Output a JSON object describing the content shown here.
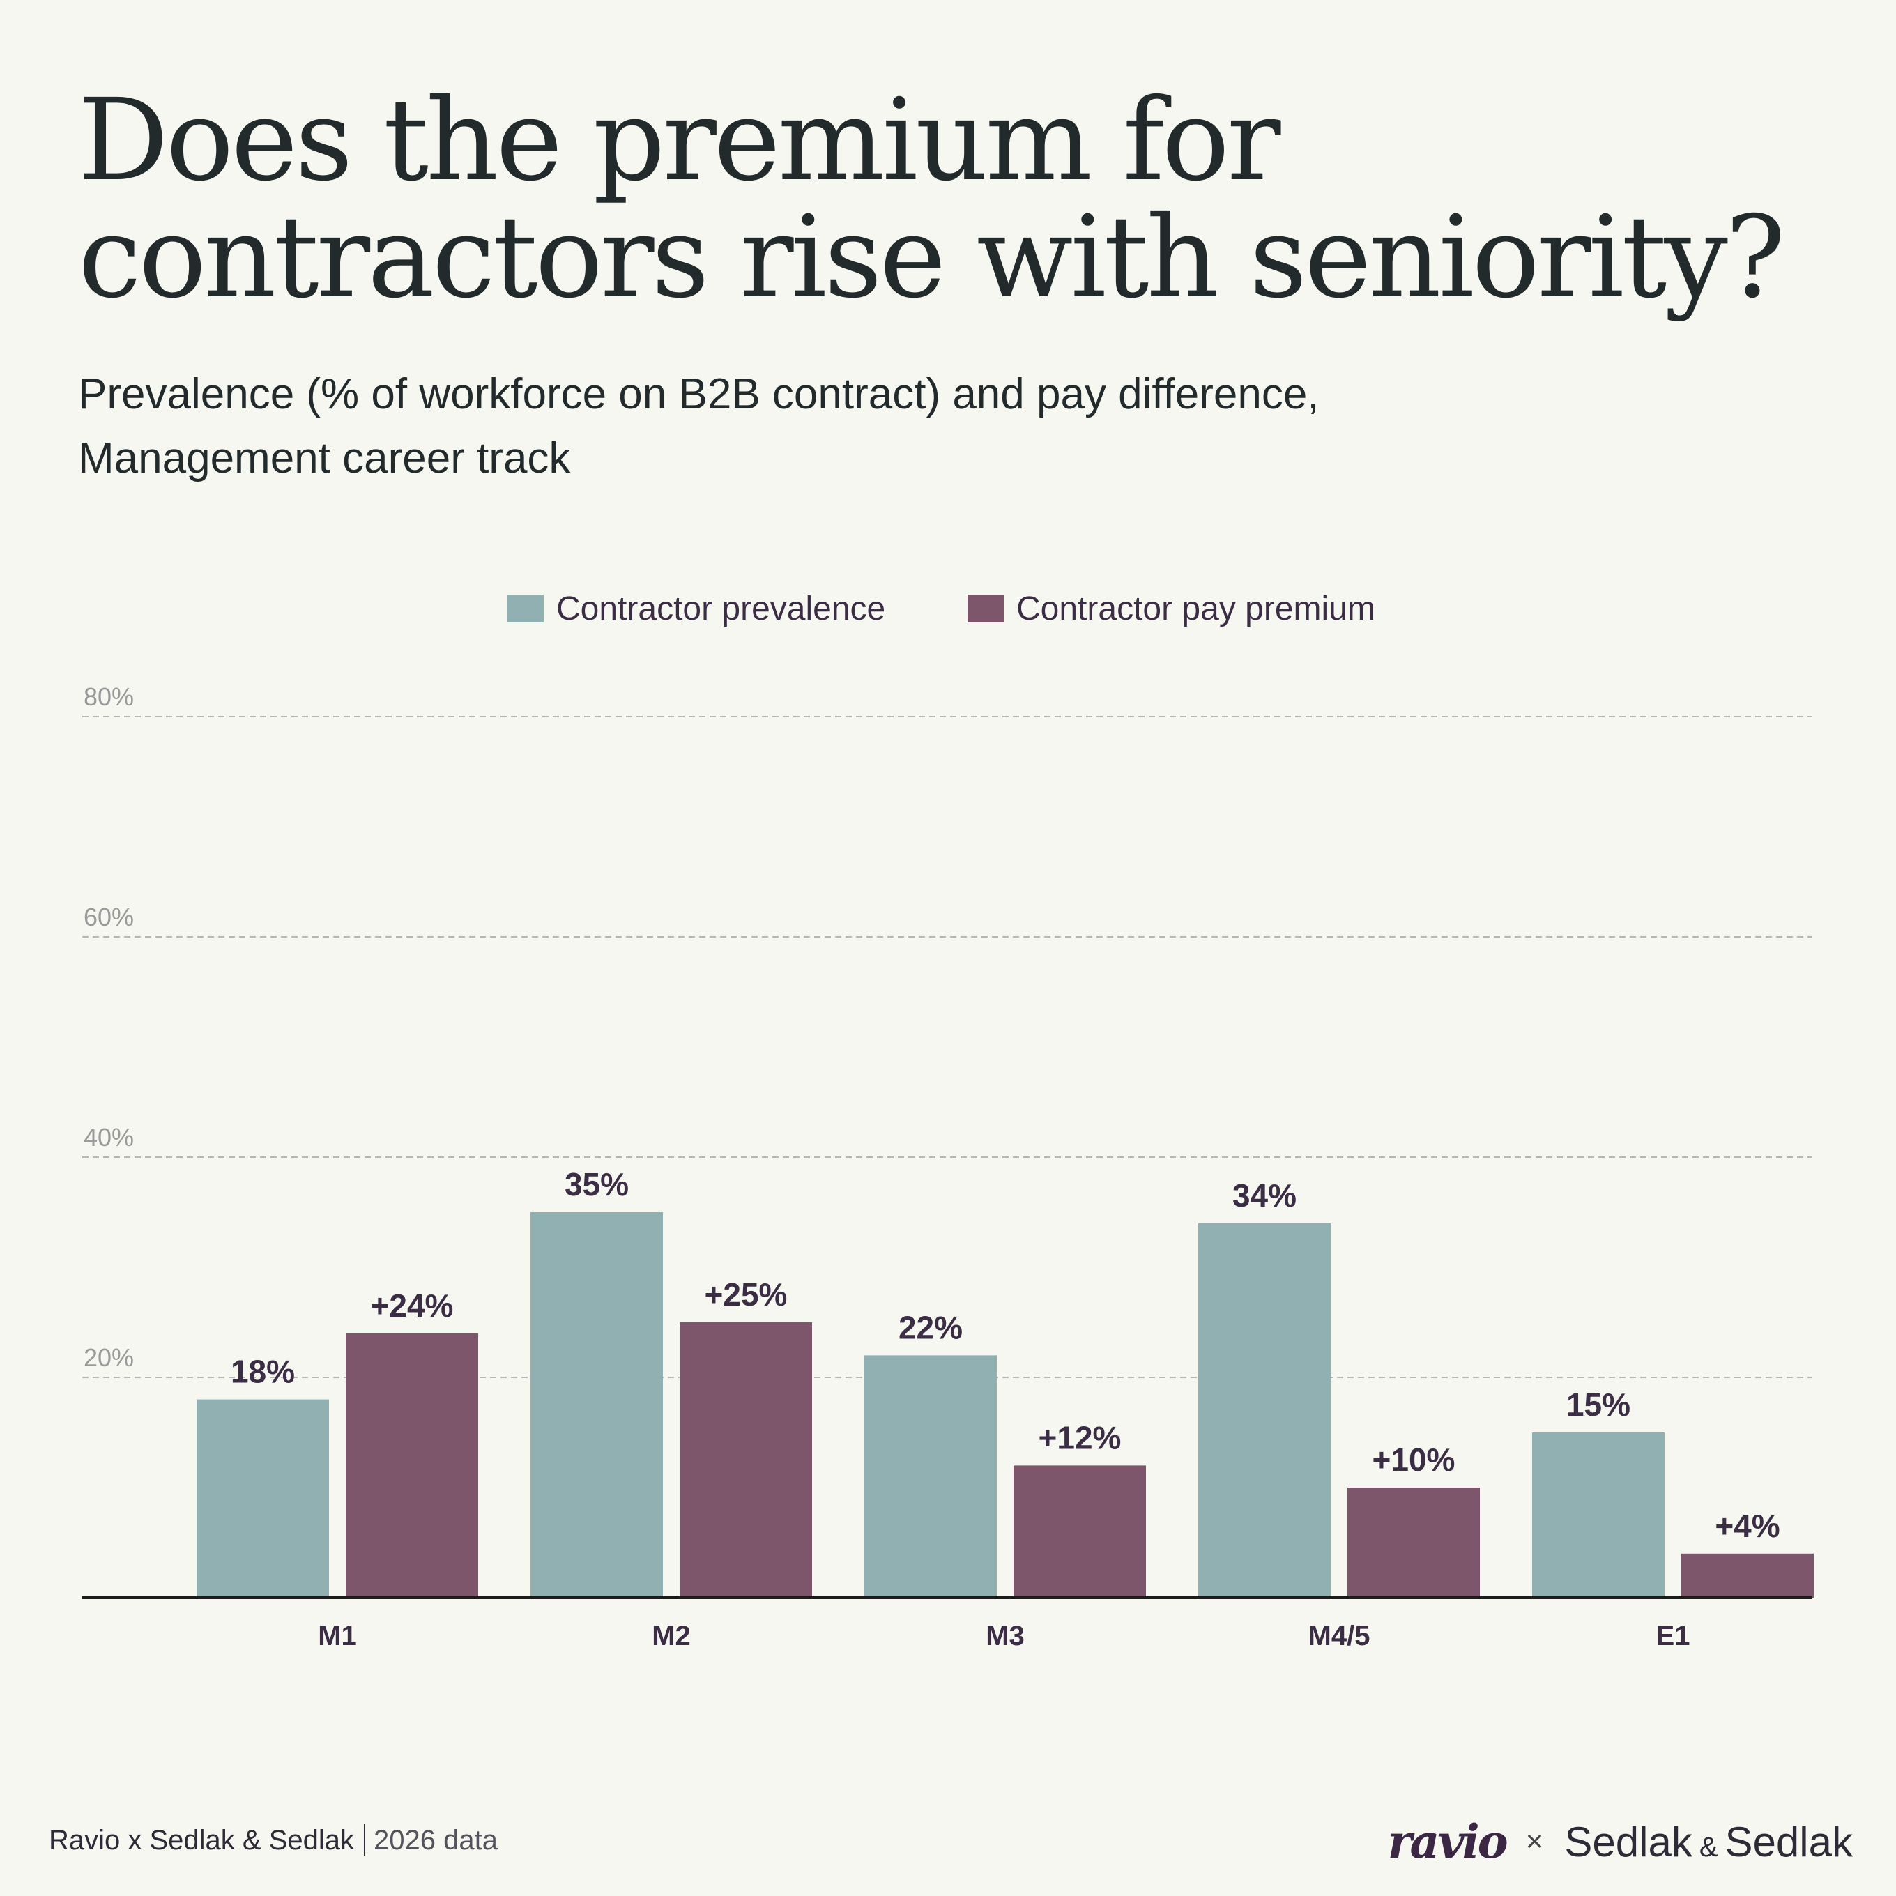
{
  "header": {
    "title_line1": "Does the premium for",
    "title_line2": "contractors rise with seniority?",
    "subtitle_line1": "Prevalence (% of workforce on B2B contract) and pay difference,",
    "subtitle_line2": "Management career track"
  },
  "colors": {
    "prevalence": "#91b0b1",
    "premium": "#7d566c",
    "label_text": "#3b2d44",
    "grid": "#b6b6b6",
    "tick_text": "#9a9a9a",
    "axis": "#1c1c1c"
  },
  "chart_data": {
    "type": "bar",
    "categories": [
      "M1",
      "M2",
      "M3",
      "M4/5",
      "E1"
    ],
    "series": [
      {
        "name": "Contractor prevalence",
        "values": [
          18,
          35,
          22,
          34,
          15
        ],
        "labels": [
          "18%",
          "35%",
          "22%",
          "34%",
          "15%"
        ]
      },
      {
        "name": "Contractor pay premium",
        "values": [
          24,
          25,
          12,
          10,
          4
        ],
        "labels": [
          "+24%",
          "+25%",
          "+12%",
          "+10%",
          "+4%"
        ]
      }
    ],
    "ylim": [
      0,
      80
    ],
    "yticks": [
      20,
      40,
      60,
      80
    ],
    "ytick_labels": [
      "20%",
      "40%",
      "60%",
      "80%"
    ],
    "grid": true,
    "legend": "top-center"
  },
  "footer": {
    "source_main": "Ravio x Sedlak & Sedlak",
    "source_year": "2026 data",
    "logo_ravio": "ravio",
    "logo_x": "×",
    "logo_sedlak1": "Sedlak",
    "logo_amp": "&",
    "logo_sedlak2": "Sedlak"
  }
}
